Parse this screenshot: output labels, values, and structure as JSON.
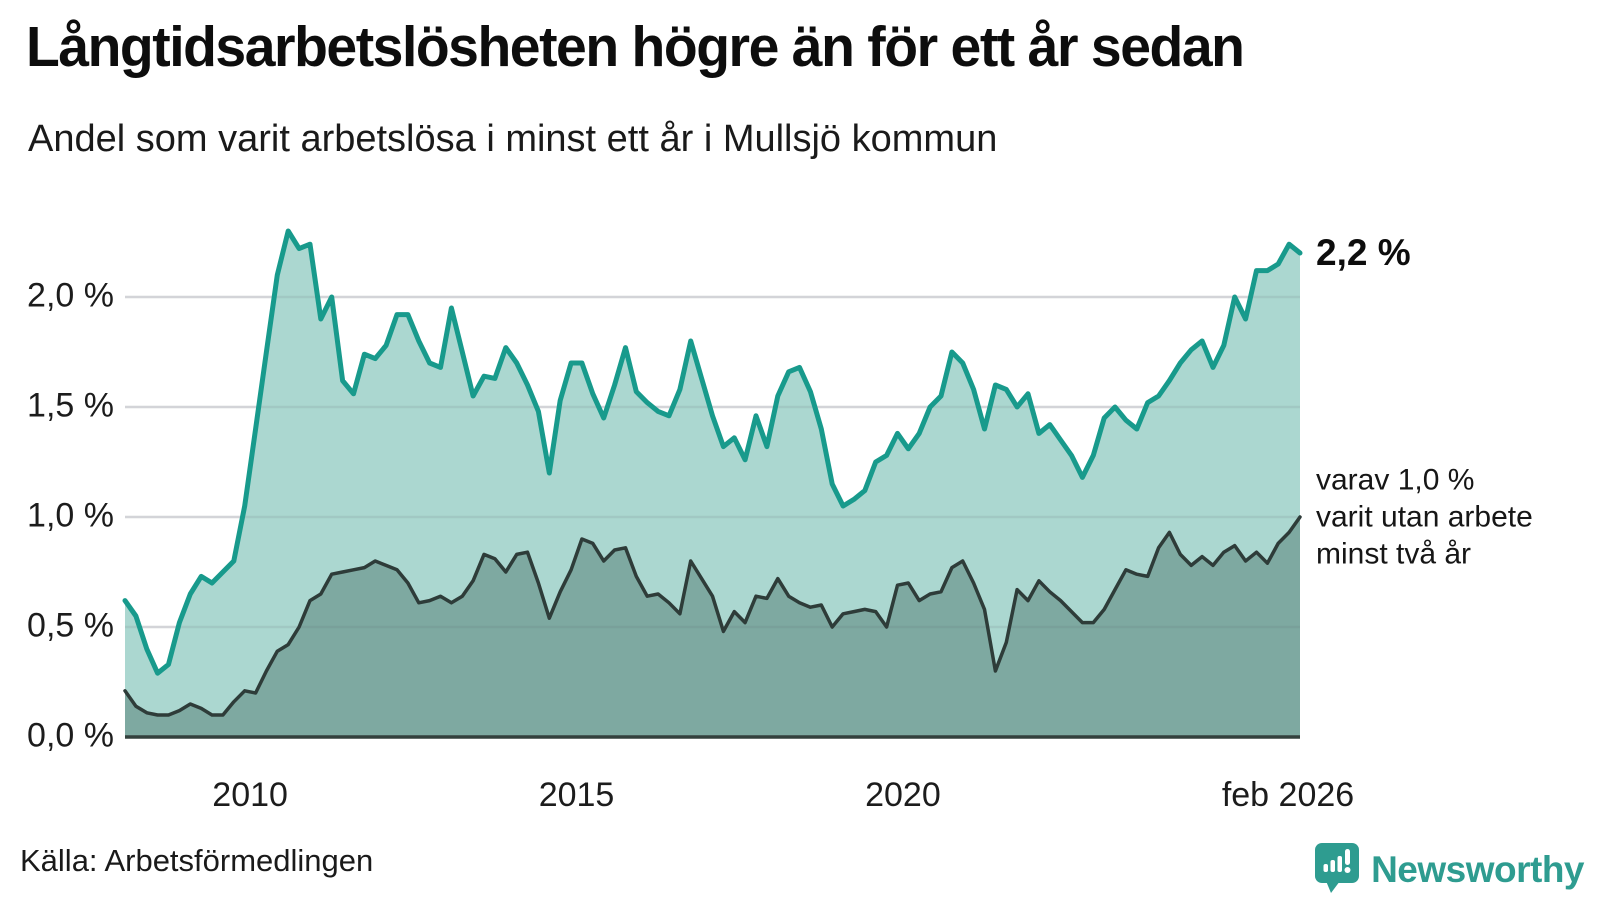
{
  "header": {
    "title": "Långtidsarbetslösheten högre än för ett år sedan",
    "subtitle": "Andel som varit arbetslösa i minst ett år i Mullsjö kommun"
  },
  "chart_data": {
    "type": "area",
    "title": "Långtidsarbetslösheten högre än för ett år sedan",
    "subtitle": "Andel som varit arbetslösa i minst ett år i Mullsjö kommun",
    "unit": "%",
    "x_start": "feb 2008",
    "x_end": "feb 2026",
    "step_months": 2,
    "ylim": [
      0,
      2.35
    ],
    "grid": true,
    "y_ticks": [
      {
        "label": "0,0 %",
        "value": 0.0
      },
      {
        "label": "0,5 %",
        "value": 0.5
      },
      {
        "label": "1,0 %",
        "value": 1.0
      },
      {
        "label": "1,5 %",
        "value": 1.5
      },
      {
        "label": "2,0 %",
        "value": 2.0
      }
    ],
    "x_ticks": [
      {
        "label": "2010",
        "year": 2010.0
      },
      {
        "label": "2015",
        "year": 2015.0
      },
      {
        "label": "2020",
        "year": 2020.0
      },
      {
        "label": "feb 2026",
        "year": 2026.083
      }
    ],
    "series": [
      {
        "name": "Arbetslösa minst ett år",
        "line_color": "#189a8c",
        "fill_color": "#abd7d0",
        "values": [
          0.62,
          0.55,
          0.4,
          0.29,
          0.33,
          0.52,
          0.65,
          0.73,
          0.7,
          0.75,
          0.8,
          1.05,
          1.4,
          1.75,
          2.1,
          2.3,
          2.22,
          2.24,
          1.9,
          2.0,
          1.62,
          1.56,
          1.74,
          1.72,
          1.78,
          1.92,
          1.92,
          1.8,
          1.7,
          1.68,
          1.95,
          1.75,
          1.55,
          1.64,
          1.63,
          1.77,
          1.7,
          1.6,
          1.48,
          1.2,
          1.53,
          1.7,
          1.7,
          1.56,
          1.45,
          1.6,
          1.77,
          1.57,
          1.52,
          1.48,
          1.46,
          1.58,
          1.8,
          1.63,
          1.46,
          1.32,
          1.36,
          1.26,
          1.46,
          1.32,
          1.55,
          1.66,
          1.68,
          1.57,
          1.4,
          1.15,
          1.05,
          1.08,
          1.12,
          1.25,
          1.28,
          1.38,
          1.31,
          1.38,
          1.5,
          1.55,
          1.75,
          1.7,
          1.58,
          1.4,
          1.6,
          1.58,
          1.5,
          1.56,
          1.38,
          1.42,
          1.35,
          1.28,
          1.18,
          1.28,
          1.45,
          1.5,
          1.44,
          1.4,
          1.52,
          1.55,
          1.62,
          1.7,
          1.76,
          1.8,
          1.68,
          1.78,
          2.0,
          1.9,
          2.12,
          2.12,
          2.15,
          2.24,
          2.2
        ]
      },
      {
        "name": "varav utan arbete minst två år",
        "line_color": "#2e3c39",
        "fill_color": "#7ea9a1",
        "values": [
          0.21,
          0.14,
          0.11,
          0.1,
          0.1,
          0.12,
          0.15,
          0.13,
          0.1,
          0.1,
          0.16,
          0.21,
          0.2,
          0.3,
          0.39,
          0.42,
          0.5,
          0.62,
          0.65,
          0.74,
          0.75,
          0.76,
          0.77,
          0.8,
          0.78,
          0.76,
          0.7,
          0.61,
          0.62,
          0.64,
          0.61,
          0.64,
          0.71,
          0.83,
          0.81,
          0.75,
          0.83,
          0.84,
          0.7,
          0.54,
          0.66,
          0.76,
          0.9,
          0.88,
          0.8,
          0.85,
          0.86,
          0.73,
          0.64,
          0.65,
          0.61,
          0.56,
          0.8,
          0.72,
          0.64,
          0.48,
          0.57,
          0.52,
          0.64,
          0.63,
          0.72,
          0.64,
          0.61,
          0.59,
          0.6,
          0.5,
          0.56,
          0.57,
          0.58,
          0.57,
          0.5,
          0.69,
          0.7,
          0.62,
          0.65,
          0.66,
          0.77,
          0.8,
          0.7,
          0.58,
          0.3,
          0.43,
          0.67,
          0.62,
          0.71,
          0.66,
          0.62,
          0.57,
          0.52,
          0.52,
          0.58,
          0.67,
          0.76,
          0.74,
          0.73,
          0.86,
          0.93,
          0.83,
          0.78,
          0.82,
          0.78,
          0.84,
          0.87,
          0.8,
          0.84,
          0.79,
          0.88,
          0.93,
          1.0
        ]
      }
    ],
    "end_labels": {
      "total": "2,2 %",
      "two_years": [
        "varav 1,0 %",
        "varit utan arbete",
        "minst två år"
      ]
    },
    "colors": {
      "grid": "#e4e4e8",
      "baseline": "#33403d",
      "accent": "#189a8c"
    },
    "legend_position": "right-annotations"
  },
  "footer": {
    "source": "Källa: Arbetsförmedlingen",
    "brand": "Newsworthy",
    "brand_color": "#2e9c90"
  }
}
